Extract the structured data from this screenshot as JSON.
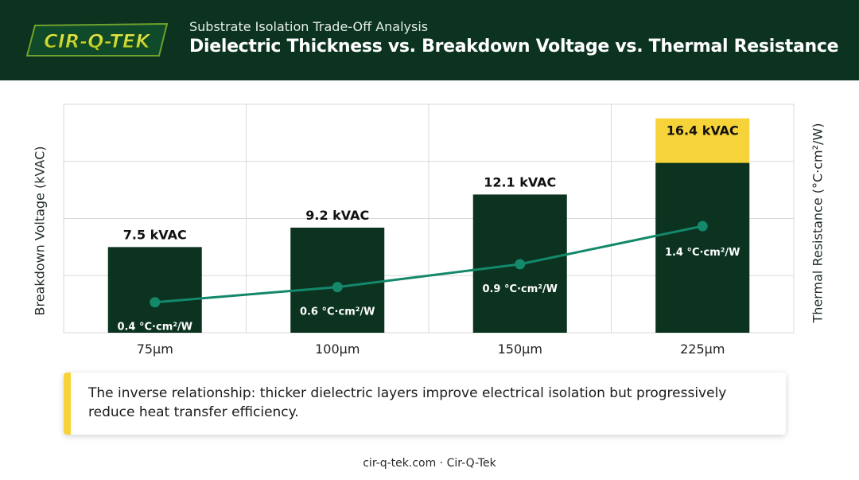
{
  "header": {
    "brand": "CIR-Q-TEK",
    "subtitle": "Substrate Isolation Trade-Off Analysis",
    "title": "Dielectric Thickness vs. Breakdown Voltage vs. Thermal Resistance"
  },
  "colors": {
    "header_bg": "#0b3320",
    "bar": "#0b3320",
    "highlight": "#f7d33a",
    "line": "#13886a",
    "grid": "#d9d9d9"
  },
  "chart_data": {
    "type": "bar",
    "categories": [
      "75μm",
      "100μm",
      "150μm",
      "225μm"
    ],
    "ylabel": "Breakdown Voltage (kVAC)",
    "y2label": "Thermal Resistance (°C·cm²/W)",
    "ylim": [
      0,
      20
    ],
    "y2lim": [
      0,
      3
    ],
    "grid": true,
    "series": [
      {
        "type": "bar",
        "values": [
          7.5,
          9.2,
          12.1,
          16.4
        ],
        "labels": [
          "7.5 kVAC",
          "9.2 kVAC",
          "12.1 kVAC",
          "16.4 kVAC"
        ],
        "highlight_index": 3
      },
      {
        "type": "line",
        "axis": "right",
        "values": [
          0.4,
          0.6,
          0.9,
          1.4
        ],
        "labels": [
          "0.4 °C·cm²/W",
          "0.6 °C·cm²/W",
          "0.9 °C·cm²/W",
          "1.4 °C·cm²/W"
        ]
      }
    ]
  },
  "note": {
    "text": "The inverse relationship: thicker dielectric layers improve electrical isolation but progressively reduce heat transfer efficiency."
  },
  "footer": {
    "text": "cir-q-tek.com · Cir-Q-Tek"
  }
}
